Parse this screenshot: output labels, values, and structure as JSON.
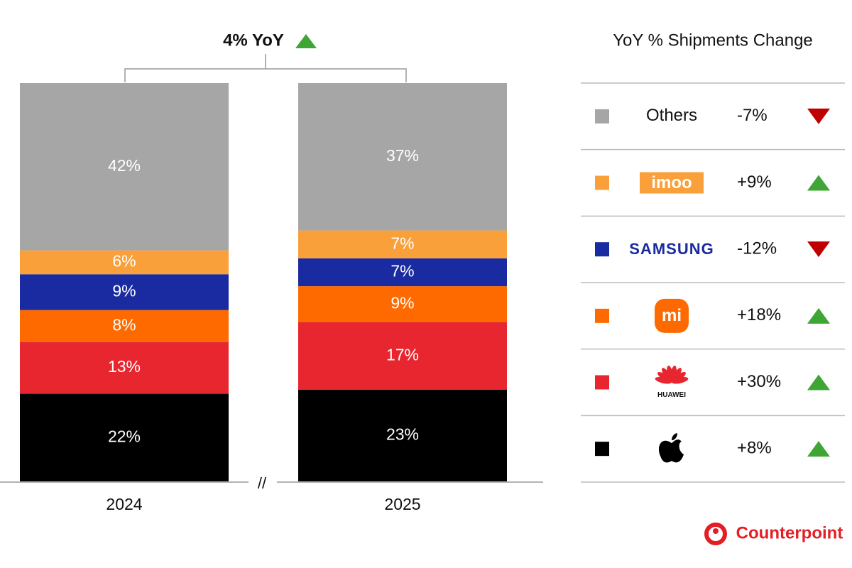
{
  "chart_data": {
    "type": "stacked_bar",
    "annotation": "4% YoY",
    "table_title": "YoY % Shipments Change",
    "axis_break": "//",
    "source": "Counterpoint",
    "categories": [
      "2024",
      "2025"
    ],
    "ylim": [
      0,
      100
    ],
    "series": [
      {
        "color": "#000000",
        "values": [
          22,
          23
        ],
        "value_labels": [
          "22%",
          "23%"
        ],
        "yoy": 8,
        "yoy_label": "+8%"
      },
      {
        "name": "HUAWEI",
        "color": "#e8262f",
        "values": [
          13,
          17
        ],
        "value_labels": [
          "13%",
          "17%"
        ],
        "yoy": 30,
        "yoy_label": "+30%"
      },
      {
        "name": "mi",
        "color": "#ff6a00",
        "values": [
          8,
          9
        ],
        "value_labels": [
          "8%",
          "9%"
        ],
        "yoy": 18,
        "yoy_label": "+18%"
      },
      {
        "name": "SAMSUNG",
        "color": "#1a2aa0",
        "values": [
          9,
          7
        ],
        "value_labels": [
          "9%",
          "7%"
        ],
        "yoy": -12,
        "yoy_label": "-12%"
      },
      {
        "name": "imoo",
        "color": "#f9a03a",
        "values": [
          6,
          7
        ],
        "value_labels": [
          "6%",
          "7%"
        ],
        "yoy": 9,
        "yoy_label": "+9%"
      },
      {
        "name": "Others",
        "color": "#a6a6a6",
        "values": [
          42,
          37
        ],
        "value_labels": [
          "42%",
          "37%"
        ],
        "yoy": -7,
        "yoy_label": "-7%"
      }
    ]
  }
}
